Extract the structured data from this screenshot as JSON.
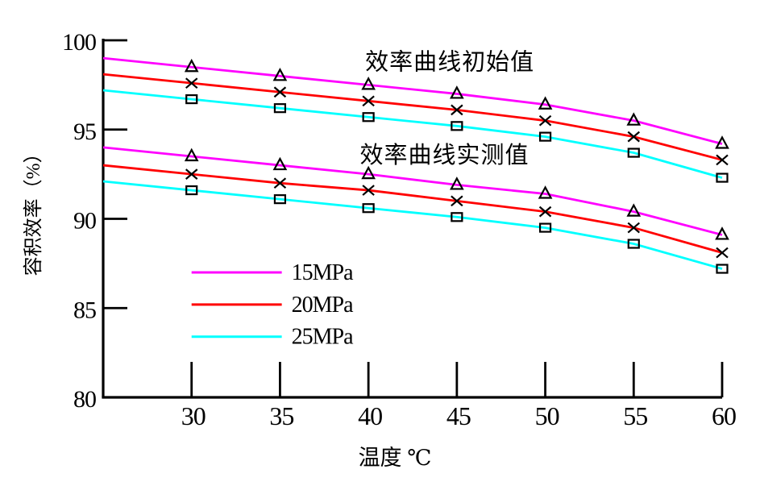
{
  "page": {
    "background": "#ffffff"
  },
  "chart_data": {
    "type": "line",
    "title": "",
    "xlabel": "温度  ℃",
    "ylabel": "容积效率（%）",
    "xlim": [
      25,
      60
    ],
    "ylim": [
      80,
      100
    ],
    "x_ticks": [
      30,
      35,
      40,
      45,
      50,
      55,
      60
    ],
    "y_ticks": [
      100,
      95,
      90,
      85,
      80
    ],
    "grid": false,
    "legend_position": "inside-lower-left",
    "axis_color": "#000000",
    "x": [
      25,
      30,
      35,
      40,
      45,
      50,
      55,
      60
    ],
    "markers_start_at_x": 30,
    "series": [
      {
        "name": "初始值 15MPa",
        "group": "效率曲线初始值",
        "pressure": "15MPa",
        "color": "#ff00ff",
        "marker": "triangle",
        "values": [
          99.0,
          98.5,
          98.0,
          97.5,
          97.0,
          96.4,
          95.5,
          94.2
        ]
      },
      {
        "name": "初始值 20MPa",
        "group": "效率曲线初始值",
        "pressure": "20MPa",
        "color": "#ff0000",
        "marker": "x",
        "values": [
          98.1,
          97.6,
          97.1,
          96.6,
          96.1,
          95.5,
          94.6,
          93.3
        ]
      },
      {
        "name": "初始值 25MPa",
        "group": "效率曲线初始值",
        "pressure": "25MPa",
        "color": "#00ffff",
        "marker": "square",
        "values": [
          97.2,
          96.7,
          96.2,
          95.7,
          95.2,
          94.6,
          93.7,
          92.3
        ]
      },
      {
        "name": "实测值 15MPa",
        "group": "效率曲线实测值",
        "pressure": "15MPa",
        "color": "#ff00ff",
        "marker": "triangle",
        "values": [
          94.0,
          93.5,
          93.0,
          92.5,
          91.9,
          91.4,
          90.4,
          89.1
        ]
      },
      {
        "name": "实测值 20MPa",
        "group": "效率曲线实测值",
        "pressure": "20MPa",
        "color": "#ff0000",
        "marker": "x",
        "values": [
          93.0,
          92.5,
          92.0,
          91.6,
          91.0,
          90.4,
          89.5,
          88.1
        ]
      },
      {
        "name": "实测值 25MPa",
        "group": "效率曲线实测值",
        "pressure": "25MPa",
        "color": "#00ffff",
        "marker": "square",
        "values": [
          92.1,
          91.6,
          91.1,
          90.6,
          90.1,
          89.5,
          88.6,
          87.2
        ]
      }
    ],
    "annotations": [
      {
        "id": "initial-curves-label",
        "text": "效率曲线初始值",
        "x": 44.6,
        "y": 98.8
      },
      {
        "id": "measured-curves-label",
        "text": "效率曲线实测值",
        "x": 44.3,
        "y": 93.6
      }
    ],
    "legend": {
      "text_color": "#ff00ff",
      "x_range": [
        30.0,
        35.1
      ],
      "entries": [
        {
          "label": "15MPa",
          "color": "#ff00ff",
          "y": 87.0
        },
        {
          "label": "20MPa",
          "color": "#ff0000",
          "y": 85.2
        },
        {
          "label": "25MPa",
          "color": "#00ffff",
          "y": 83.4
        }
      ]
    }
  }
}
